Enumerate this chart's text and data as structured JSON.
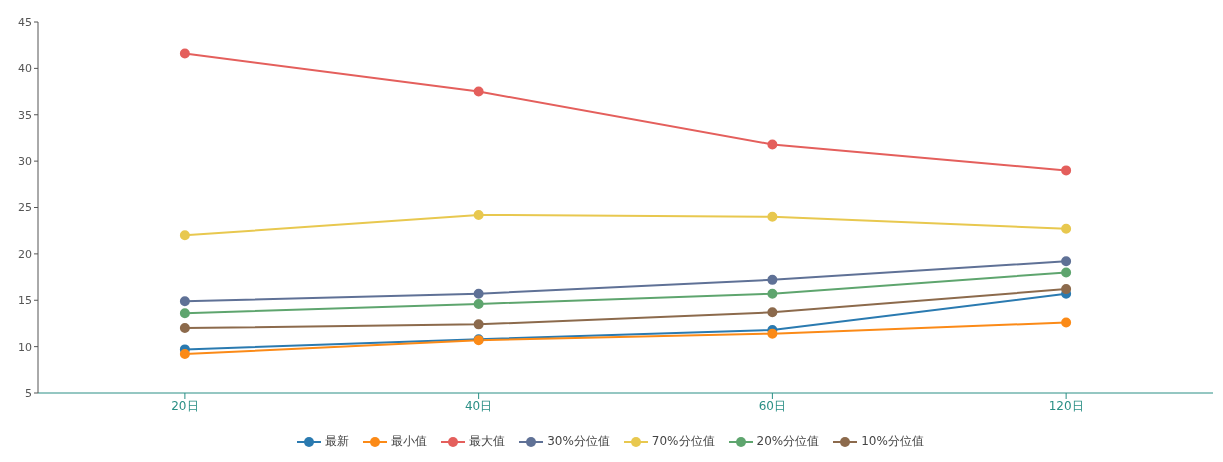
{
  "chart_data": {
    "type": "line",
    "categories": [
      "20日",
      "40日",
      "60日",
      "120日"
    ],
    "series": [
      {
        "name": "最新",
        "color": "#2a7ab0",
        "values": [
          9.7,
          10.8,
          11.8,
          15.7
        ]
      },
      {
        "name": "最小值",
        "color": "#fb8a17",
        "values": [
          9.2,
          10.7,
          11.4,
          12.6
        ]
      },
      {
        "name": "最大值",
        "color": "#e45f5c",
        "values": [
          41.6,
          37.5,
          31.8,
          29.0
        ]
      },
      {
        "name": "30%分位值",
        "color": "#5f7196",
        "values": [
          14.9,
          15.7,
          17.2,
          19.2
        ]
      },
      {
        "name": "70%分位值",
        "color": "#e8c84f",
        "values": [
          22.0,
          24.2,
          24.0,
          22.7
        ]
      },
      {
        "name": "20%分位值",
        "color": "#5ea56e",
        "values": [
          13.6,
          14.6,
          15.7,
          18.0
        ]
      },
      {
        "name": "10%分位值",
        "color": "#8c6a4c",
        "values": [
          12.0,
          12.4,
          13.7,
          16.2
        ]
      }
    ],
    "ylim": [
      5,
      45
    ],
    "yticks": [
      5,
      10,
      15,
      20,
      25,
      30,
      35,
      40,
      45
    ],
    "legend": "bottom",
    "marker": "circle",
    "line_style": "solid"
  }
}
